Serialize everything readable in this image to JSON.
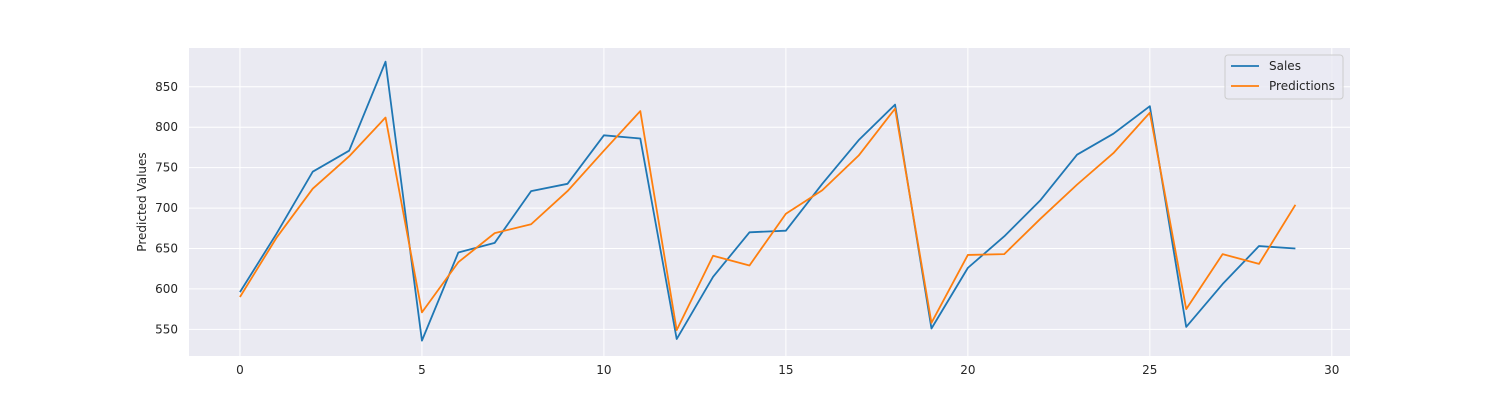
{
  "chart_data": {
    "type": "line",
    "title": "",
    "xlabel": "",
    "ylabel": "Predicted Values",
    "xlim": [
      -1.4,
      30.5
    ],
    "ylim": [
      517,
      898
    ],
    "xticks": [
      0,
      5,
      10,
      15,
      20,
      25,
      30
    ],
    "yticks": [
      550,
      600,
      650,
      700,
      750,
      800,
      850
    ],
    "grid": true,
    "legend": "top-right",
    "x": [
      0,
      1,
      2,
      3,
      4,
      5,
      6,
      7,
      8,
      9,
      10,
      11,
      12,
      13,
      14,
      15,
      16,
      17,
      18,
      19,
      20,
      21,
      22,
      23,
      24,
      25,
      26,
      27,
      28,
      29
    ],
    "series": [
      {
        "name": "Sales",
        "color": "#1f77b4",
        "values": [
          596,
          668,
          745,
          771,
          881,
          536,
          645,
          657,
          721,
          730,
          790,
          786,
          538,
          615,
          670,
          672,
          730,
          784,
          828,
          551,
          626,
          665,
          710,
          766,
          792,
          826,
          553,
          606,
          653,
          650
        ]
      },
      {
        "name": "Predictions",
        "color": "#ff7f0e",
        "values": [
          590,
          663,
          724,
          764,
          812,
          571,
          633,
          669,
          680,
          721,
          771,
          820,
          549,
          641,
          629,
          693,
          722,
          765,
          823,
          558,
          642,
          643,
          687,
          729,
          768,
          818,
          575,
          643,
          631,
          704
        ]
      }
    ]
  }
}
